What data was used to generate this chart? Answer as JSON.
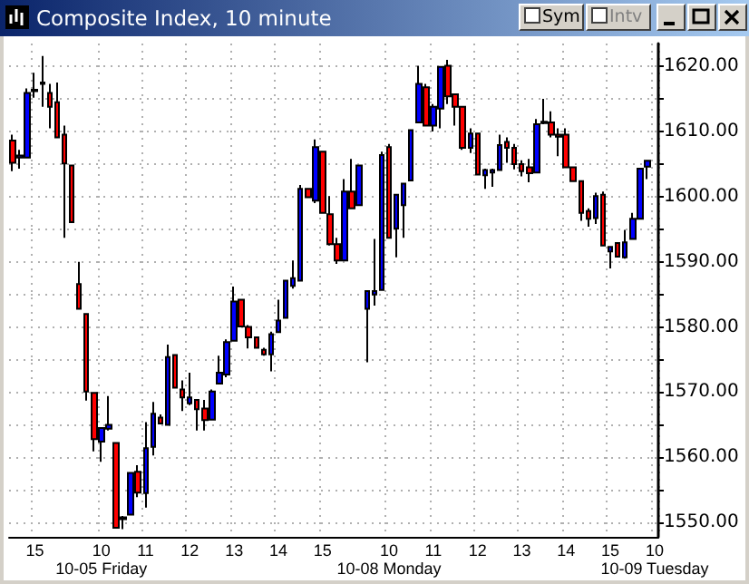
{
  "chart_data": {
    "type": "candlestick",
    "title": "Composite Index, 10 minute",
    "annotations": [
      "Sym",
      "Intv"
    ],
    "categories": [
      null,
      null,
      null,
      "15",
      null,
      null,
      null,
      null,
      null,
      null,
      null,
      null,
      "10\n10-05 Friday",
      null,
      null,
      null,
      null,
      null,
      "11",
      null,
      null,
      null,
      null,
      null,
      "12",
      null,
      null,
      null,
      null,
      null,
      "13",
      null,
      null,
      null,
      null,
      null,
      "14",
      null,
      null,
      null,
      null,
      null,
      "15",
      null,
      null,
      null,
      null,
      null,
      null,
      null,
      null,
      "10\n10-08 Monday",
      null,
      null,
      null,
      null,
      null,
      "11",
      null,
      null,
      null,
      null,
      null,
      "12",
      null,
      null,
      null,
      null,
      null,
      "13",
      null,
      null,
      null,
      null,
      null,
      "14",
      null,
      null,
      null,
      null,
      null,
      "15",
      null,
      null,
      null,
      null,
      null,
      "10\n10-09 Tuesday"
    ],
    "ohlc": [
      [
        1608.6,
        1609.5,
        1603.9,
        1605.2
      ],
      [
        1606.0,
        1607.2,
        1604.3,
        1606.3
      ],
      [
        1606.0,
        1616.6,
        1606.0,
        1615.9
      ],
      [
        1616.2,
        1619.0,
        1615.2,
        1616.4
      ],
      [
        1617.3,
        1621.6,
        1613.8,
        1617.5
      ],
      [
        1615.9,
        1617.3,
        1610.5,
        1613.8
      ],
      [
        1614.5,
        1617.5,
        1609.1,
        1609.1
      ],
      [
        1609.5,
        1610.9,
        1593.7,
        1605.1
      ],
      [
        1604.8,
        1604.8,
        1596.1,
        1596.1
      ],
      [
        1586.6,
        1590.0,
        1582.8,
        1582.8
      ],
      [
        1582.0,
        1582.0,
        1568.7,
        1570.1
      ],
      [
        1569.9,
        1569.9,
        1560.9,
        1562.8
      ],
      [
        1562.4,
        1564.5,
        1559.3,
        1564.5
      ],
      [
        1564.4,
        1569.4,
        1564.1,
        1565.0
      ],
      [
        1562.2,
        1562.2,
        1549.2,
        1549.2
      ],
      [
        1550.5,
        1551.0,
        1549.0,
        1550.8
      ],
      [
        1551.2,
        1557.6,
        1551.2,
        1557.6
      ],
      [
        1557.8,
        1558.8,
        1553.9,
        1554.6
      ],
      [
        1554.5,
        1565.4,
        1552.3,
        1561.4
      ],
      [
        1561.6,
        1568.5,
        1560.3,
        1566.7
      ],
      [
        1566.1,
        1566.6,
        1565.2,
        1565.2
      ],
      [
        1565.0,
        1577.3,
        1565.0,
        1575.4
      ],
      [
        1575.7,
        1575.7,
        1570.7,
        1570.7
      ],
      [
        1570.4,
        1571.8,
        1567.1,
        1569.2
      ],
      [
        1568.3,
        1573.0,
        1568.0,
        1569.2
      ],
      [
        1568.8,
        1568.8,
        1564.1,
        1567.4
      ],
      [
        1567.5,
        1568.8,
        1564.1,
        1565.7
      ],
      [
        1565.8,
        1570.4,
        1565.8,
        1570.1
      ],
      [
        1571.3,
        1575.6,
        1571.3,
        1573.0
      ],
      [
        1572.7,
        1578.1,
        1572.3,
        1577.7
      ],
      [
        1577.9,
        1586.2,
        1577.9,
        1583.9
      ],
      [
        1584.2,
        1584.2,
        1580.1,
        1580.1
      ],
      [
        1580.0,
        1580.3,
        1576.7,
        1578.4
      ],
      [
        1578.4,
        1578.4,
        1576.8,
        1576.8
      ],
      [
        1576.5,
        1576.8,
        1575.6,
        1575.8
      ],
      [
        1575.8,
        1579.3,
        1573.2,
        1578.9
      ],
      [
        1579.2,
        1584.2,
        1579.2,
        1581.0
      ],
      [
        1581.4,
        1587.1,
        1581.4,
        1587.1
      ],
      [
        1586.3,
        1590.2,
        1585.9,
        1587.5
      ],
      [
        1587.1,
        1601.8,
        1587.1,
        1601.2
      ],
      [
        1601.2,
        1601.2,
        1599.9,
        1599.9
      ],
      [
        1599.4,
        1608.8,
        1599.0,
        1607.6
      ],
      [
        1606.9,
        1606.9,
        1597.5,
        1597.5
      ],
      [
        1597.3,
        1600.1,
        1592.5,
        1592.7
      ],
      [
        1592.7,
        1593.7,
        1589.7,
        1590.2
      ],
      [
        1590.2,
        1602.7,
        1590.2,
        1600.8
      ],
      [
        1600.8,
        1605.8,
        1598.2,
        1598.2
      ],
      [
        1598.7,
        1604.8,
        1598.7,
        1604.8
      ],
      [
        1582.8,
        1585.5,
        1574.6,
        1585.5
      ],
      [
        1585.0,
        1593.5,
        1583.3,
        1585.5
      ],
      [
        1585.7,
        1606.9,
        1585.7,
        1606.4
      ],
      [
        1607.6,
        1608.1,
        1593.7,
        1593.7
      ],
      [
        1595.1,
        1600.3,
        1590.7,
        1600.3
      ],
      [
        1598.7,
        1602.0,
        1593.7,
        1602.0
      ],
      [
        1602.5,
        1610.2,
        1602.5,
        1610.2
      ],
      [
        1611.4,
        1620.1,
        1611.4,
        1617.3
      ],
      [
        1616.8,
        1617.3,
        1610.9,
        1610.9
      ],
      [
        1610.9,
        1614.2,
        1610.0,
        1613.8
      ],
      [
        1613.5,
        1619.9,
        1610.5,
        1619.9
      ],
      [
        1620.1,
        1621.0,
        1614.2,
        1615.4
      ],
      [
        1615.7,
        1615.7,
        1610.9,
        1613.8
      ],
      [
        1613.8,
        1613.8,
        1607.2,
        1607.5
      ],
      [
        1607.5,
        1610.5,
        1606.7,
        1609.7
      ],
      [
        1609.7,
        1609.7,
        1603.4,
        1603.4
      ],
      [
        1603.3,
        1604.3,
        1601.2,
        1604.1
      ],
      [
        1603.7,
        1604.3,
        1601.5,
        1604.1
      ],
      [
        1604.1,
        1609.5,
        1604.1,
        1607.9
      ],
      [
        1608.4,
        1609.1,
        1605.2,
        1607.5
      ],
      [
        1607.5,
        1608.1,
        1604.2,
        1605.0
      ],
      [
        1605.0,
        1605.6,
        1603.1,
        1603.9
      ],
      [
        1604.5,
        1605.8,
        1602.2,
        1603.6
      ],
      [
        1603.7,
        1611.9,
        1603.7,
        1611.1
      ],
      [
        1611.3,
        1615.0,
        1611.1,
        1611.5
      ],
      [
        1611.4,
        1613.1,
        1609.1,
        1609.5
      ],
      [
        1609.5,
        1610.5,
        1606.2,
        1609.2
      ],
      [
        1609.5,
        1610.5,
        1604.5,
        1604.5
      ],
      [
        1604.5,
        1604.5,
        1602.4,
        1602.4
      ],
      [
        1602.4,
        1602.4,
        1596.3,
        1597.5
      ],
      [
        1597.8,
        1598.2,
        1595.4,
        1596.6
      ],
      [
        1596.7,
        1600.6,
        1595.8,
        1600.1
      ],
      [
        1600.3,
        1600.8,
        1592.5,
        1592.5
      ],
      [
        1591.6,
        1592.3,
        1589.0,
        1592.3
      ],
      [
        1592.9,
        1592.9,
        1590.7,
        1590.8
      ],
      [
        1590.7,
        1594.9,
        1590.5,
        1593.0
      ],
      [
        1593.5,
        1597.5,
        1593.5,
        1596.6
      ],
      [
        1596.6,
        1604.3,
        1596.6,
        1604.3
      ],
      [
        1604.6,
        1605.5,
        1602.7,
        1605.5
      ],
      null
    ],
    "colors": [
      "#ff0000",
      "#0000ff",
      "#0000ff",
      "#0000ff",
      "#0000ff",
      "#ff0000",
      "#ff0000",
      "#ff0000",
      "#ff0000",
      "#ff0000",
      "#ff0000",
      "#ff0000",
      "#0000ff",
      "#0000ff",
      "#ff0000",
      "#0000ff",
      "#0000ff",
      "#ff0000",
      "#0000ff",
      "#0000ff",
      "#ff0000",
      "#0000ff",
      "#ff0000",
      "#ff0000",
      "#0000ff",
      "#ff0000",
      "#ff0000",
      "#0000ff",
      "#0000ff",
      "#0000ff",
      "#0000ff",
      "#ff0000",
      "#ff0000",
      "#ff0000",
      "#ff0000",
      "#0000ff",
      "#0000ff",
      "#0000ff",
      "#0000ff",
      "#0000ff",
      "#ff0000",
      "#0000ff",
      "#ff0000",
      "#ff0000",
      "#ff0000",
      "#0000ff",
      "#ff0000",
      "#0000ff",
      "#0000ff",
      "#0000ff",
      "#0000ff",
      "#ff0000",
      "#0000ff",
      "#0000ff",
      "#0000ff",
      "#0000ff",
      "#ff0000",
      "#0000ff",
      "#0000ff",
      "#ff0000",
      "#ff0000",
      "#ff0000",
      "#0000ff",
      "#ff0000",
      "#0000ff",
      "#0000ff",
      "#0000ff",
      "#ff0000",
      "#ff0000",
      "#ff0000",
      "#ff0000",
      "#0000ff",
      "#0000ff",
      "#ff0000",
      "#ff0000",
      "#ff0000",
      "#ff0000",
      "#ff0000",
      "#ff0000",
      "#0000ff",
      "#ff0000",
      "#0000ff",
      "#ff0000",
      "#0000ff",
      "#0000ff",
      "#0000ff",
      "#0000ff",
      null
    ],
    "ylim": [
      1547.8,
      1623.5
    ],
    "yticks": [
      {
        "value": 1550,
        "label": "1550.00"
      },
      {
        "value": 1555,
        "label": null
      },
      {
        "value": 1560,
        "label": "1560.00"
      },
      {
        "value": 1565,
        "label": null
      },
      {
        "value": 1570,
        "label": "1570.00"
      },
      {
        "value": 1575,
        "label": null
      },
      {
        "value": 1580,
        "label": "1580.00"
      },
      {
        "value": 1585,
        "label": null
      },
      {
        "value": 1590,
        "label": "1590.00"
      },
      {
        "value": 1595,
        "label": null
      },
      {
        "value": 1600,
        "label": "1600.00"
      },
      {
        "value": 1605,
        "label": null
      },
      {
        "value": 1610,
        "label": "1610.00"
      },
      {
        "value": 1615,
        "label": null
      },
      {
        "value": 1620,
        "label": "1620.00"
      }
    ],
    "grid": true
  }
}
